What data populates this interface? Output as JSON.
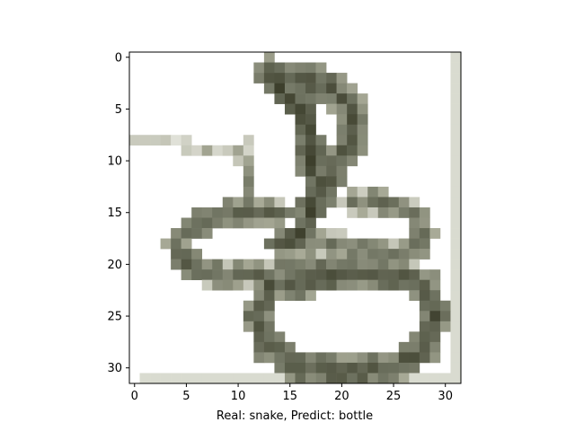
{
  "image": {
    "description_icon": "snake-pixel-image",
    "colors": {
      "background": "#ffffff",
      "snake_dark": "#3d3f2c",
      "snake_mid": "#6e7260",
      "snake_light": "#a9ab98",
      "frame_edge": "#d9dbd0"
    }
  },
  "axes": {
    "x_ticks": [
      "0",
      "5",
      "10",
      "15",
      "20",
      "25",
      "30"
    ],
    "y_ticks": [
      "0",
      "5",
      "10",
      "15",
      "20",
      "25",
      "30"
    ],
    "xlabel": "Real: snake, Predict: bottle",
    "xlim": [
      -0.5,
      31.5
    ],
    "ylim": [
      31.5,
      -0.5
    ],
    "grid": false
  }
}
